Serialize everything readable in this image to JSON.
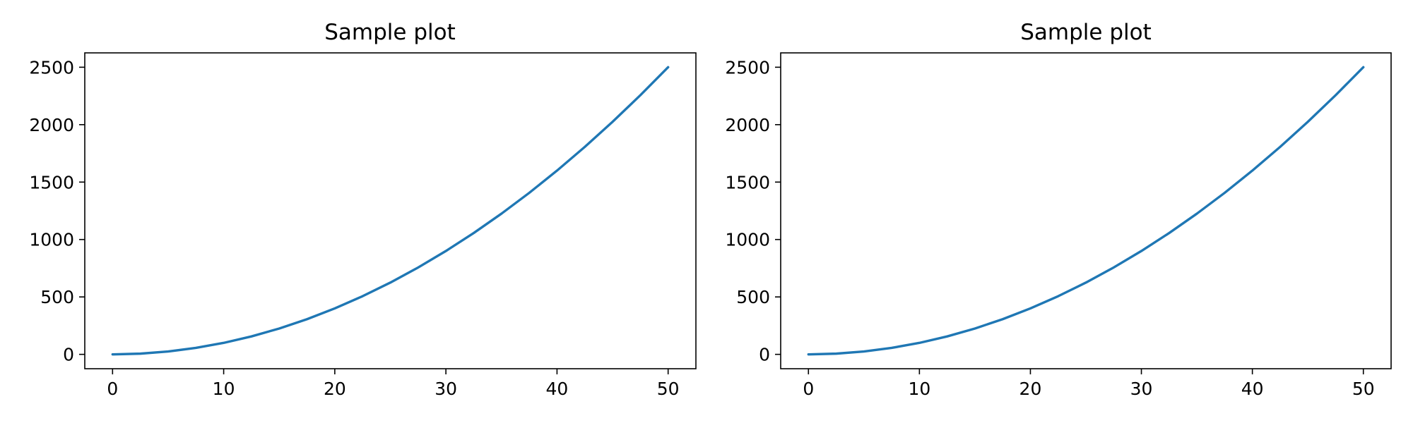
{
  "chart_data": [
    {
      "type": "line",
      "title": "Sample plot",
      "xlabel": "",
      "ylabel": "",
      "xlim": [
        -2.5,
        52.5
      ],
      "ylim": [
        -125,
        2625
      ],
      "xticks": [
        0,
        10,
        20,
        30,
        40,
        50
      ],
      "yticks": [
        0,
        500,
        1000,
        1500,
        2000,
        2500
      ],
      "grid": false,
      "x": [
        0,
        2.5,
        5,
        7.5,
        10,
        12.5,
        15,
        17.5,
        20,
        22.5,
        25,
        27.5,
        30,
        32.5,
        35,
        37.5,
        40,
        42.5,
        45,
        47.5,
        50
      ],
      "series": [
        {
          "color": "#1f77b4",
          "values": [
            0,
            6.25,
            25,
            56.25,
            100,
            156.25,
            225,
            306.25,
            400,
            506.25,
            625,
            756.25,
            900,
            1056.25,
            1225,
            1406.25,
            1600,
            1806.25,
            2025,
            2256.25,
            2500
          ]
        }
      ]
    },
    {
      "type": "line",
      "title": "Sample plot",
      "xlabel": "",
      "ylabel": "",
      "xlim": [
        -2.5,
        52.5
      ],
      "ylim": [
        -125,
        2625
      ],
      "xticks": [
        0,
        10,
        20,
        30,
        40,
        50
      ],
      "yticks": [
        0,
        500,
        1000,
        1500,
        2000,
        2500
      ],
      "grid": false,
      "x": [
        0,
        2.5,
        5,
        7.5,
        10,
        12.5,
        15,
        17.5,
        20,
        22.5,
        25,
        27.5,
        30,
        32.5,
        35,
        37.5,
        40,
        42.5,
        45,
        47.5,
        50
      ],
      "series": [
        {
          "color": "#1f77b4",
          "values": [
            0,
            6.25,
            25,
            56.25,
            100,
            156.25,
            225,
            306.25,
            400,
            506.25,
            625,
            756.25,
            900,
            1056.25,
            1225,
            1406.25,
            1600,
            1806.25,
            2025,
            2256.25,
            2500
          ]
        }
      ]
    }
  ]
}
